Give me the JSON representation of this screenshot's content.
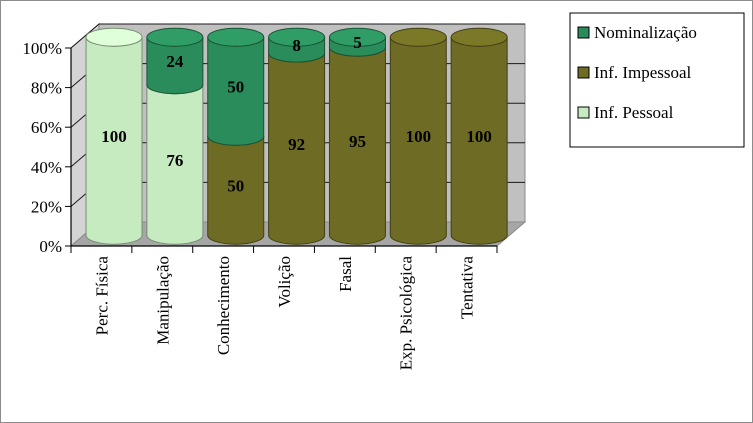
{
  "chart_data": {
    "type": "bar",
    "stacked": "percent",
    "style": "3d-cylinder",
    "categories": [
      "Perc. Física",
      "Manipulação",
      "Conhecimento",
      "Volição",
      "Fasal",
      "Exp. Psicológica",
      "Tentativa"
    ],
    "series": [
      {
        "name": "Inf. Pessoal",
        "color": "#c7ebc1",
        "values": [
          100,
          76,
          0,
          0,
          0,
          0,
          0
        ]
      },
      {
        "name": "Inf. Impessoal",
        "color": "#6e6b24",
        "values": [
          0,
          0,
          50,
          92,
          95,
          100,
          100
        ]
      },
      {
        "name": "Nominalização",
        "color": "#2a8c5a",
        "values": [
          0,
          24,
          50,
          8,
          5,
          0,
          0
        ]
      }
    ],
    "data_labels": [
      [
        "100",
        "",
        ""
      ],
      [
        "76",
        "",
        "24"
      ],
      [
        "",
        "50",
        "50"
      ],
      [
        "",
        "92",
        "8"
      ],
      [
        "",
        "95",
        "5"
      ],
      [
        "",
        "100",
        ""
      ],
      [
        "",
        "100",
        ""
      ]
    ],
    "y_ticks": [
      "0%",
      "20%",
      "40%",
      "60%",
      "80%",
      "100%"
    ],
    "ylim": [
      0,
      100
    ],
    "grid": true,
    "legend_position": "right",
    "legend_order": [
      "Nominalização",
      "Inf. Impessoal",
      "Inf. Pessoal"
    ]
  }
}
